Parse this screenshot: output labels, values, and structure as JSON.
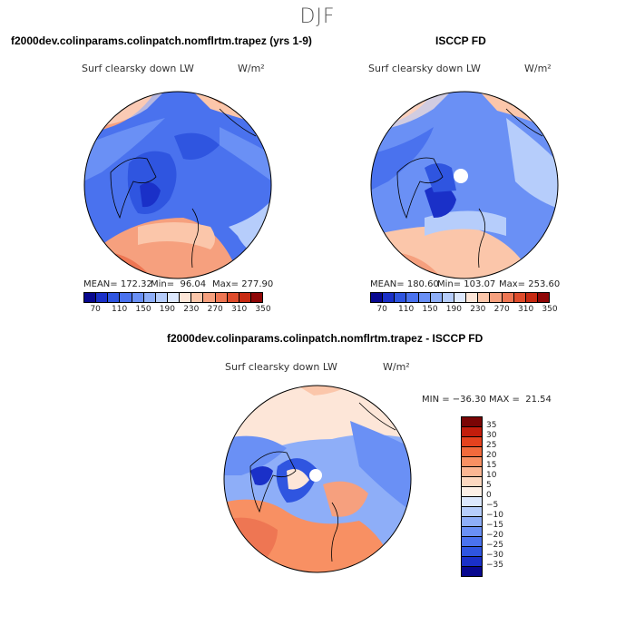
{
  "page": {
    "season": "DJF"
  },
  "panels": [
    {
      "title": "f2000dev.colinparams.colinpatch.nomflrtm.trapez (yrs 1-9)",
      "variable": "Surf clearsky down LW",
      "units": "W/m²",
      "stats": {
        "mean": "MEAN= 172.32",
        "min": "Min=  96.04",
        "max": "Max= 277.90"
      }
    },
    {
      "title": "ISCCP FD",
      "variable": "Surf clearsky down LW",
      "units": "W/m²",
      "stats": {
        "mean": "MEAN= 180.60",
        "min": "Min= 103.07",
        "max": "Max= 253.60"
      }
    },
    {
      "title": "f2000dev.colinparams.colinpatch.nomflrtm.trapez - ISCCP FD",
      "variable": "Surf clearsky down LW",
      "units": "W/m²",
      "minmax": "MIN = −36.30 MAX =  21.54"
    }
  ],
  "colorbar_abs": {
    "colors": [
      "#08088f",
      "#1a30c8",
      "#2f55e0",
      "#4a72ee",
      "#6a90f5",
      "#8eaef8",
      "#b6cdfb",
      "#dde8fd",
      "#fde6d8",
      "#fbc6aa",
      "#f6a07e",
      "#ee7653",
      "#df4c2c",
      "#c72a12",
      "#8f0707"
    ],
    "tick_labels": [
      "70",
      "110",
      "150",
      "190",
      "230",
      "270",
      "310",
      "350"
    ]
  },
  "colorbar_diff": {
    "colors": [
      "#7a0505",
      "#c21d0c",
      "#e5421e",
      "#f26a3c",
      "#f89063",
      "#fbb693",
      "#fdd8c0",
      "#fdf0e6",
      "#dce8fd",
      "#b6cdfb",
      "#8eaef8",
      "#6a90f5",
      "#4a72ee",
      "#2f55e0",
      "#1a30c8",
      "#08088f"
    ],
    "tick_labels": [
      "35",
      "30",
      "25",
      "20",
      "15",
      "10",
      "5",
      "0",
      "−5",
      "−10",
      "−15",
      "−20",
      "−25",
      "−30",
      "−35"
    ]
  }
}
